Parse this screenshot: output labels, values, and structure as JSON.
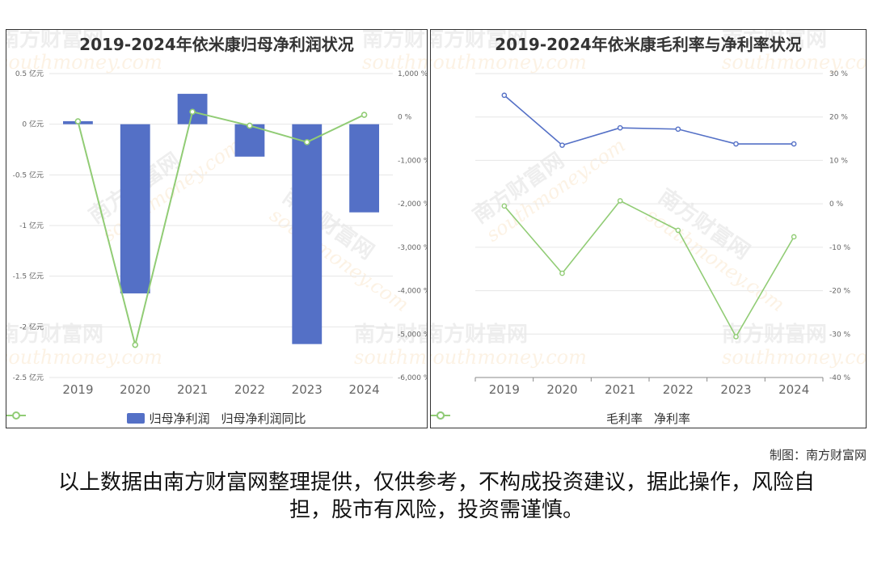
{
  "colors": {
    "bar": "#5470c6",
    "line_green": "#91cc75",
    "line_blue": "#5470c6",
    "grid": "#e6e6e6",
    "axis_text": "#666666"
  },
  "watermark": {
    "cn": "南方财富网",
    "en": "southmoney.com"
  },
  "credit": "制图：南方财富网",
  "disclaimer": "以上数据由南方财富网整理提供，仅供参考，不构成投资建议，据此操作，风险自担，股市有风险，投资需谨慎。",
  "chart_data": [
    {
      "type": "bar",
      "title": "2019-2024年依米康归母净利润状况",
      "categories": [
        "2019",
        "2020",
        "2021",
        "2022",
        "2023",
        "2024"
      ],
      "series": [
        {
          "name": "归母净利润",
          "type": "bar",
          "axis": "left",
          "values": [
            0.03,
            -1.67,
            0.3,
            -0.32,
            -2.17,
            -0.87
          ]
        },
        {
          "name": "归母净利润同比",
          "type": "line",
          "axis": "right",
          "values": [
            -100,
            -5250,
            120,
            -200,
            -580,
            50
          ]
        }
      ],
      "y_left": {
        "ylim": [
          -2.5,
          0.5
        ],
        "ticks": [
          0.5,
          0,
          -0.5,
          -1,
          -1.5,
          -2,
          -2.5
        ],
        "tick_labels": [
          "0.5 亿元",
          "0 亿元",
          "-0.5 亿元",
          "-1 亿元",
          "-1.5 亿元",
          "-2 亿元",
          "-2.5 亿元"
        ]
      },
      "y_right": {
        "ylim": [
          -6000,
          1000
        ],
        "ticks": [
          1000,
          0,
          -1000,
          -2000,
          -3000,
          -4000,
          -5000,
          -6000
        ],
        "tick_labels": [
          "1,000 %",
          "0 %",
          "-1,000 %",
          "-2,000 %",
          "-3,000 %",
          "-4,000 %",
          "-5,000 %",
          "-6,000 %"
        ]
      },
      "legend": [
        "归母净利润",
        "归母净利润同比"
      ],
      "legend_position": "bottom-center",
      "grid": true
    },
    {
      "type": "line",
      "title": "2019-2024年依米康毛利率与净利率状况",
      "categories": [
        "2019",
        "2020",
        "2021",
        "2022",
        "2023",
        "2024"
      ],
      "series": [
        {
          "name": "毛利率",
          "values": [
            25.0,
            13.5,
            17.5,
            17.2,
            13.8,
            13.8
          ]
        },
        {
          "name": "净利率",
          "values": [
            -0.5,
            -16.0,
            0.7,
            -6.1,
            -30.6,
            -7.6
          ]
        }
      ],
      "y_right": {
        "ylim": [
          -40,
          30
        ],
        "ticks": [
          30,
          20,
          10,
          0,
          -10,
          -20,
          -30,
          -40
        ],
        "tick_labels": [
          "30 %",
          "20 %",
          "10 %",
          "0 %",
          "-10 %",
          "-20 %",
          "-30 %",
          "-40 %"
        ]
      },
      "legend": [
        "毛利率",
        "净利率"
      ],
      "legend_position": "bottom-center",
      "grid": true
    }
  ]
}
